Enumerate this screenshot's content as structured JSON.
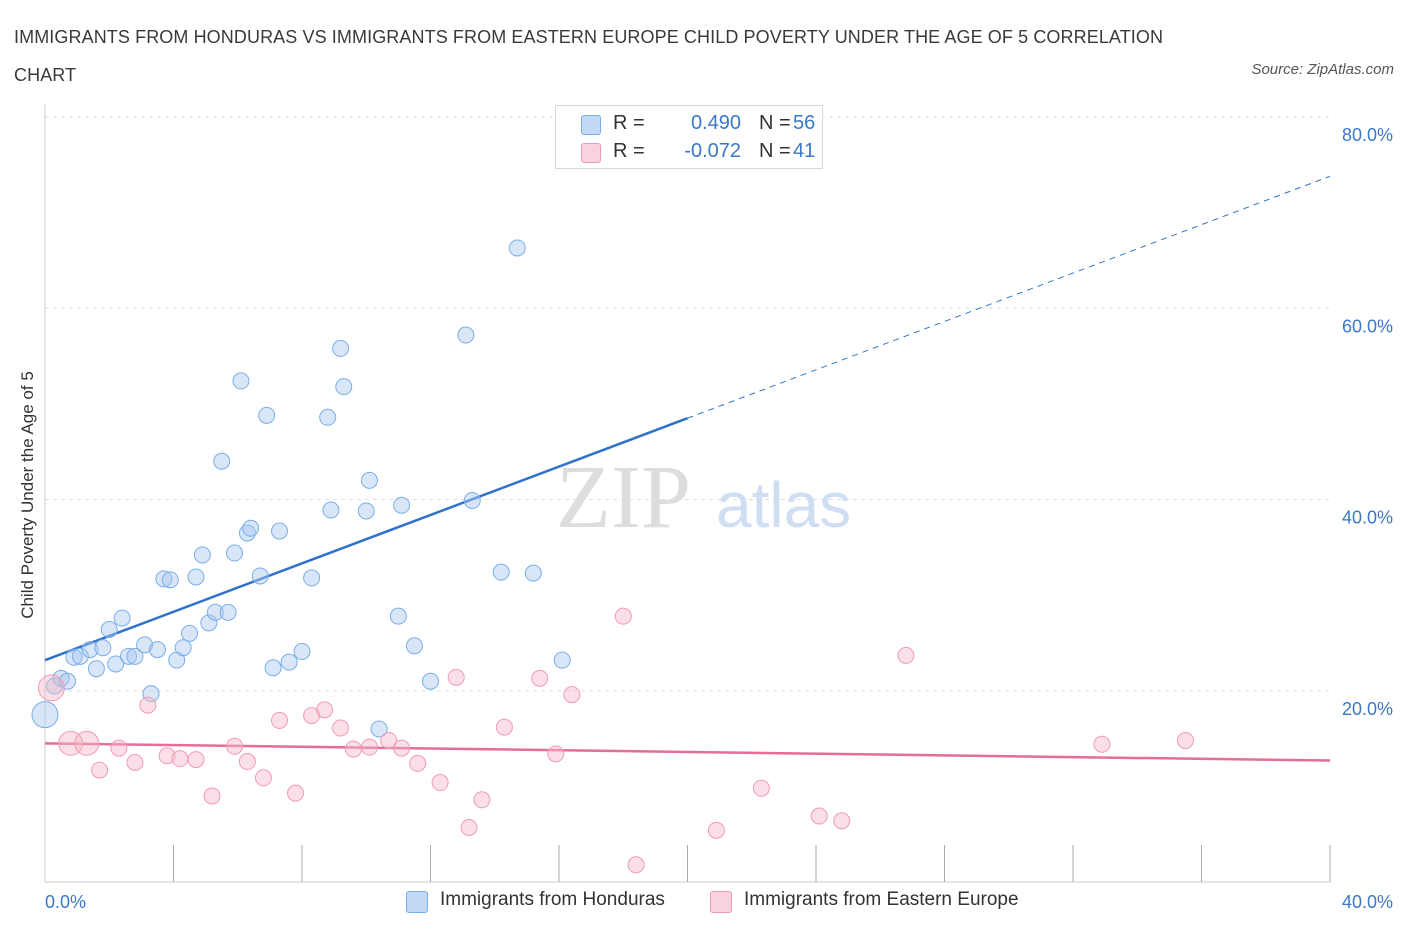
{
  "title": "IMMIGRANTS FROM HONDURAS VS IMMIGRANTS FROM EASTERN EUROPE CHILD POVERTY UNDER THE AGE OF 5 CORRELATION CHART",
  "source": "Source: ZipAtlas.com",
  "watermark": {
    "zip": "ZIP",
    "atlas": "atlas"
  },
  "legend": {
    "rows": [
      {
        "r_label": "R =",
        "r_value": "0.490",
        "n_label": "N =",
        "n_value": "56",
        "color": "#a9c8f0"
      },
      {
        "r_label": "R =",
        "r_value": "-0.072",
        "n_label": "N =",
        "n_value": "41",
        "color": "#f5b8c8"
      }
    ]
  },
  "bottom_legend": [
    {
      "label": "Immigrants from Honduras",
      "color": "#a9c8f0"
    },
    {
      "label": "Immigrants from Eastern Europe",
      "color": "#f5b8c8"
    }
  ],
  "chart_data": {
    "type": "scatter",
    "title": "IMMIGRANTS FROM HONDURAS VS IMMIGRANTS FROM EASTERN EUROPE CHILD POVERTY UNDER THE AGE OF 5 CORRELATION CHART",
    "xlabel": "",
    "ylabel": "Child Poverty Under the Age of 5",
    "xlim": [
      0,
      40
    ],
    "ylim": [
      0,
      80
    ],
    "x_tick_labels": [
      {
        "value": 0,
        "label": "0.0%"
      },
      {
        "value": 40,
        "label": "40.0%"
      }
    ],
    "y_tick_labels": [
      {
        "value": 20,
        "label": "20.0%"
      },
      {
        "value": 40,
        "label": "40.0%"
      },
      {
        "value": 60,
        "label": "60.0%"
      },
      {
        "value": 80,
        "label": "80.0%"
      }
    ],
    "grid": true,
    "legend_position": "top-center",
    "series": [
      {
        "name": "Immigrants from Honduras",
        "color": "#7aaee8",
        "trend": {
          "x0": 0,
          "y0": 23.2,
          "x1": 20,
          "y1": 48.5,
          "dashed_to_x": 40,
          "dashed_to_y": 73.8,
          "color": "#2f72cc"
        },
        "points": [
          [
            0.0,
            17.5,
            "L"
          ],
          [
            0.3,
            20.5
          ],
          [
            0.5,
            21.3
          ],
          [
            0.7,
            21.0
          ],
          [
            0.9,
            23.5
          ],
          [
            1.1,
            23.6
          ],
          [
            1.4,
            24.3
          ],
          [
            1.6,
            22.3
          ],
          [
            1.8,
            24.5
          ],
          [
            2.0,
            26.4
          ],
          [
            2.2,
            22.8
          ],
          [
            2.4,
            27.6
          ],
          [
            2.6,
            23.6
          ],
          [
            2.8,
            23.6
          ],
          [
            3.1,
            24.8
          ],
          [
            3.3,
            19.7
          ],
          [
            3.5,
            24.3
          ],
          [
            3.7,
            31.7
          ],
          [
            3.9,
            31.6
          ],
          [
            4.1,
            23.2
          ],
          [
            4.3,
            24.5
          ],
          [
            4.5,
            26.0
          ],
          [
            4.7,
            31.9
          ],
          [
            4.9,
            34.2
          ],
          [
            5.1,
            27.1
          ],
          [
            5.3,
            28.2
          ],
          [
            5.5,
            44.0
          ],
          [
            5.7,
            28.2
          ],
          [
            5.9,
            34.4
          ],
          [
            6.1,
            52.4
          ],
          [
            6.3,
            36.5
          ],
          [
            6.4,
            37.0
          ],
          [
            6.7,
            32.0
          ],
          [
            6.9,
            48.8
          ],
          [
            7.1,
            22.4
          ],
          [
            7.3,
            36.7
          ],
          [
            7.6,
            23.0
          ],
          [
            8.0,
            24.1
          ],
          [
            8.3,
            31.8
          ],
          [
            8.8,
            48.6
          ],
          [
            8.9,
            38.9
          ],
          [
            9.2,
            55.8
          ],
          [
            9.3,
            51.8
          ],
          [
            10.0,
            38.8
          ],
          [
            10.1,
            42.0
          ],
          [
            10.4,
            16.0
          ],
          [
            11.0,
            27.8
          ],
          [
            11.1,
            39.4
          ],
          [
            11.5,
            24.7
          ],
          [
            12.0,
            21.0
          ],
          [
            13.1,
            57.2
          ],
          [
            13.3,
            39.9
          ],
          [
            14.2,
            32.4
          ],
          [
            14.7,
            66.3
          ],
          [
            15.2,
            32.3
          ],
          [
            16.1,
            23.2
          ]
        ]
      },
      {
        "name": "Immigrants from Eastern Europe",
        "color": "#f29ab4",
        "trend": {
          "x0": 0,
          "y0": 14.5,
          "x1": 40,
          "y1": 12.7,
          "color": "#e46e96"
        },
        "points": [
          [
            0.2,
            20.3,
            "L"
          ],
          [
            0.8,
            14.5,
            "M"
          ],
          [
            1.3,
            14.5,
            "M"
          ],
          [
            1.7,
            11.7
          ],
          [
            2.3,
            14.0
          ],
          [
            2.8,
            12.5
          ],
          [
            3.2,
            18.5
          ],
          [
            3.8,
            13.2
          ],
          [
            4.2,
            12.9
          ],
          [
            4.7,
            12.8
          ],
          [
            5.2,
            9.0
          ],
          [
            5.9,
            14.2
          ],
          [
            6.3,
            12.6
          ],
          [
            6.8,
            10.9
          ],
          [
            7.3,
            16.9
          ],
          [
            7.8,
            9.3
          ],
          [
            8.3,
            17.4
          ],
          [
            8.7,
            18.0
          ],
          [
            9.2,
            16.1
          ],
          [
            9.6,
            13.9
          ],
          [
            10.1,
            14.1
          ],
          [
            10.7,
            14.8
          ],
          [
            11.1,
            14.0
          ],
          [
            11.6,
            12.4
          ],
          [
            12.3,
            10.4
          ],
          [
            12.8,
            21.4
          ],
          [
            13.2,
            5.7
          ],
          [
            13.6,
            8.6
          ],
          [
            14.3,
            16.2
          ],
          [
            15.4,
            21.3
          ],
          [
            15.9,
            13.4
          ],
          [
            16.4,
            19.6
          ],
          [
            18.0,
            27.8
          ],
          [
            18.4,
            1.8
          ],
          [
            20.9,
            5.4
          ],
          [
            22.3,
            9.8
          ],
          [
            24.1,
            6.9
          ],
          [
            24.8,
            6.4
          ],
          [
            26.8,
            23.7
          ],
          [
            32.9,
            14.4
          ],
          [
            35.5,
            14.8
          ]
        ]
      }
    ]
  }
}
